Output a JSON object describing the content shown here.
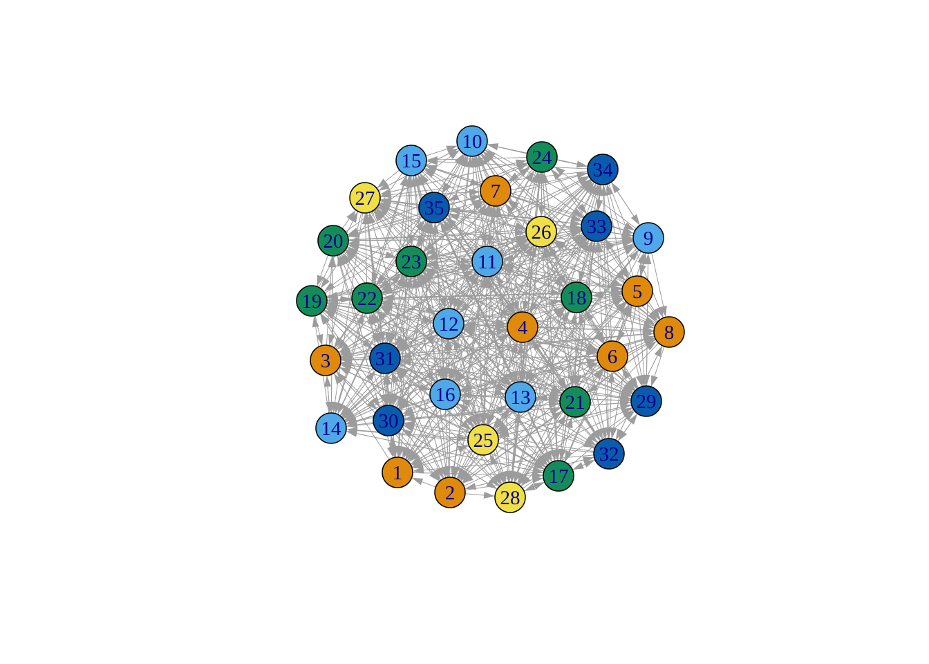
{
  "graph": {
    "edge_color": "#9c9c9c",
    "node_stroke": "#000000",
    "label_color": "#00008b",
    "groups": {
      "orange": "#e08a0b",
      "lightblue": "#4fa8e8",
      "green": "#138c5a",
      "yellow": "#f0e043",
      "darkblue": "#0a5aad"
    },
    "nodes": [
      {
        "id": "1",
        "group": "orange"
      },
      {
        "id": "2",
        "group": "orange"
      },
      {
        "id": "3",
        "group": "orange"
      },
      {
        "id": "4",
        "group": "orange"
      },
      {
        "id": "5",
        "group": "orange"
      },
      {
        "id": "6",
        "group": "orange"
      },
      {
        "id": "7",
        "group": "orange"
      },
      {
        "id": "8",
        "group": "orange"
      },
      {
        "id": "9",
        "group": "lightblue"
      },
      {
        "id": "10",
        "group": "lightblue"
      },
      {
        "id": "11",
        "group": "lightblue"
      },
      {
        "id": "12",
        "group": "lightblue"
      },
      {
        "id": "13",
        "group": "lightblue"
      },
      {
        "id": "14",
        "group": "lightblue"
      },
      {
        "id": "15",
        "group": "lightblue"
      },
      {
        "id": "16",
        "group": "lightblue"
      },
      {
        "id": "17",
        "group": "green"
      },
      {
        "id": "18",
        "group": "green"
      },
      {
        "id": "19",
        "group": "green"
      },
      {
        "id": "20",
        "group": "green"
      },
      {
        "id": "21",
        "group": "green"
      },
      {
        "id": "22",
        "group": "green"
      },
      {
        "id": "23",
        "group": "green"
      },
      {
        "id": "24",
        "group": "green"
      },
      {
        "id": "25",
        "group": "yellow"
      },
      {
        "id": "26",
        "group": "yellow"
      },
      {
        "id": "27",
        "group": "yellow"
      },
      {
        "id": "28",
        "group": "yellow"
      },
      {
        "id": "29",
        "group": "darkblue"
      },
      {
        "id": "30",
        "group": "darkblue"
      },
      {
        "id": "31",
        "group": "darkblue"
      },
      {
        "id": "32",
        "group": "darkblue"
      },
      {
        "id": "33",
        "group": "darkblue"
      },
      {
        "id": "34",
        "group": "darkblue"
      },
      {
        "id": "35",
        "group": "darkblue"
      }
    ]
  }
}
